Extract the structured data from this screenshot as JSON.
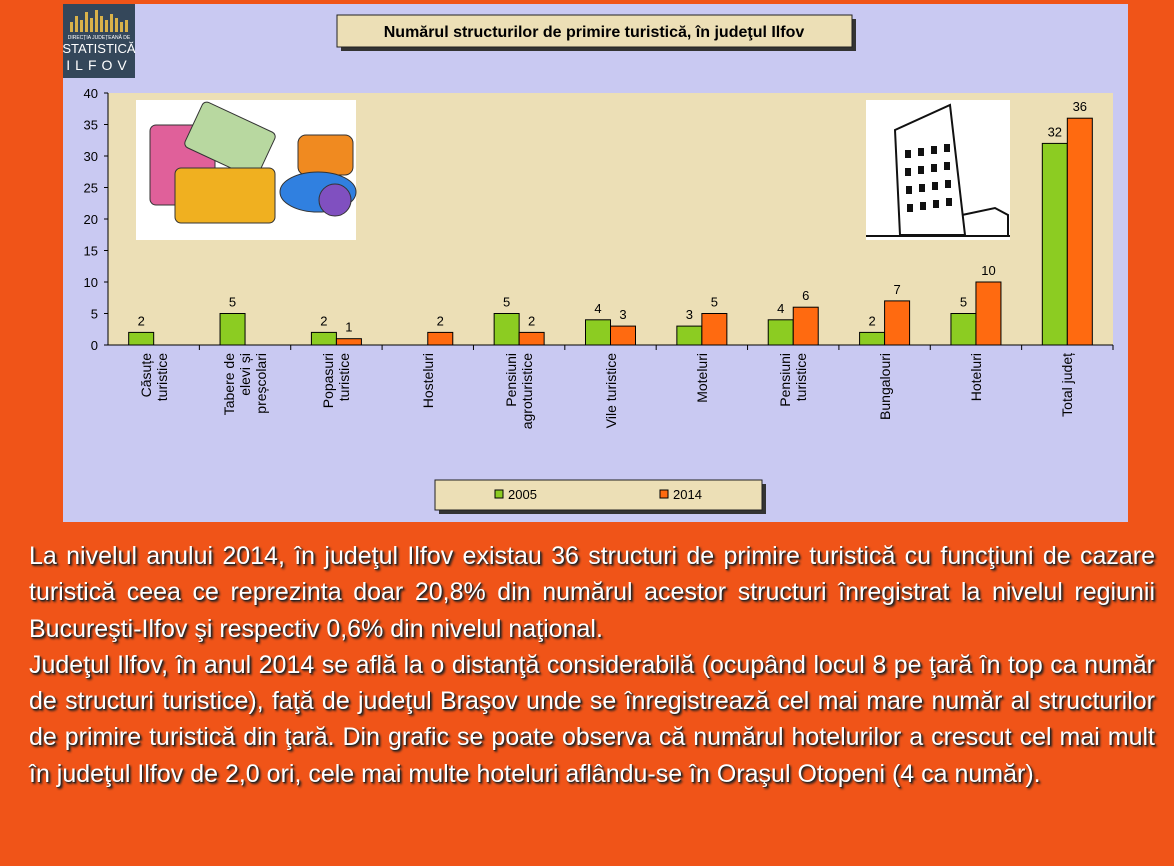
{
  "logo": {
    "lines": [
      "DIRECȚIA JUDEȚEANĂ DE",
      "STATISTICĂ",
      "ILFOV"
    ]
  },
  "chart_data": {
    "type": "bar",
    "title": "Numărul structurilor de primire turistică, în judeţul Ilfov",
    "categories": [
      "Căsuțe turistice",
      "Tabere de elevi și preșcolari",
      "Popasuri turistice",
      "Hosteluri",
      "Pensiuni agroturistice",
      "Vile turistice",
      "Moteluri",
      "Pensiuni turistice",
      "Bungalouri",
      "Hoteluri",
      "Total județ"
    ],
    "series": [
      {
        "name": "2005",
        "color": "#8ccc22",
        "values": [
          2,
          5,
          2,
          null,
          5,
          4,
          3,
          4,
          2,
          5,
          32
        ]
      },
      {
        "name": "2014",
        "color": "#ff6a10",
        "values": [
          null,
          null,
          1,
          2,
          2,
          3,
          5,
          6,
          7,
          10,
          36
        ]
      }
    ],
    "ylim": [
      0,
      40
    ],
    "yticks": [
      0,
      5,
      10,
      15,
      20,
      25,
      30,
      35,
      40
    ],
    "grid": false,
    "legend": "bottom"
  },
  "paragraphs": [
    "La nivelul anului 2014, în judeţul Ilfov existau 36 structuri de primire turistică cu funcţiuni de cazare turistică ceea ce reprezinta doar 20,8% din numărul acestor structuri înregistrat la nivelul regiunii Bucureşti-Ilfov şi respectiv 0,6% din nivelul naţional.",
    "Judeţul Ilfov, în anul 2014 se află la o distanţă considerabilă (ocupând locul 8 pe ţară în top ca număr de structuri turistice), faţă de judeţul Braşov unde se înregistrează cel mai mare număr al structurilor de primire turistică din ţară. Din grafic se poate observa că numărul hotelurilor a crescut cel mai mult în judeţul Ilfov de 2,0 ori, cele mai multe hoteluri aflându-se în Oraşul Otopeni (4 ca număr)."
  ]
}
